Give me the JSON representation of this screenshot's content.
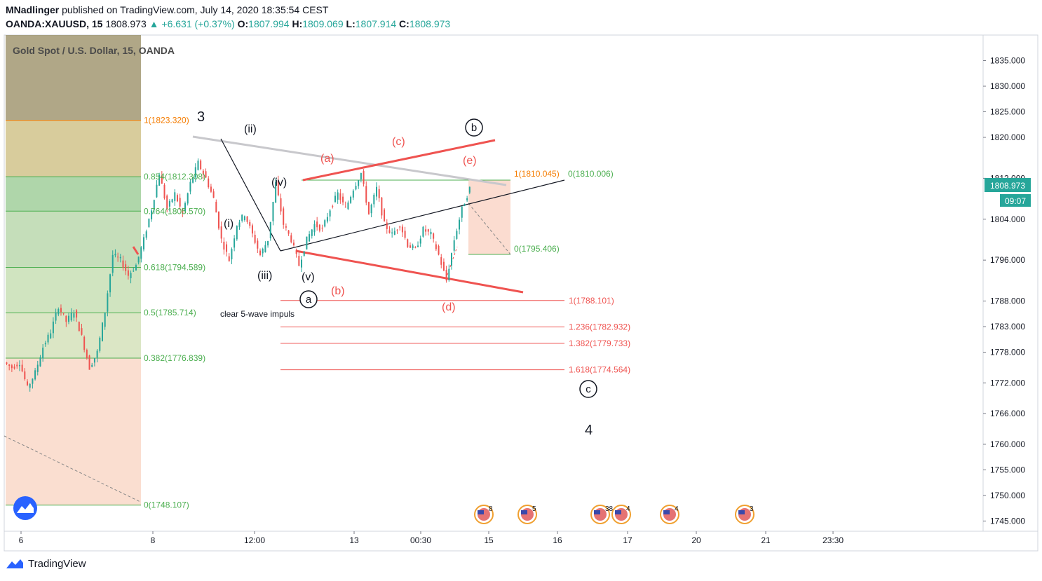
{
  "header": {
    "author": "MNadlinger",
    "published": "published on TradingView.com, July 14, 2020 18:35:54 CEST",
    "symbol": "OANDA:XAUUSD, 15",
    "price": "1808.973",
    "arrow": "▲",
    "change": "+6.631 (+0.37%)",
    "o_label": "O:",
    "o": "1807.994",
    "h_label": "H:",
    "h": "1809.069",
    "l_label": "L:",
    "l": "1807.914",
    "c_label": "C:",
    "c": "1808.973"
  },
  "footer": {
    "brand": "TradingView"
  },
  "colors": {
    "green": "#4caf50",
    "red": "#ef5350",
    "orange": "#f57c00",
    "fib_green": "rgba(76,175,80,0.35)",
    "fib_salmon": "rgba(242,140,100,0.30)"
  },
  "chart_data": {
    "type": "candlestick",
    "title": "Gold Spot / U.S. Dollar, 15, OANDA",
    "ylim": [
      1743,
      1840
    ],
    "y_ticks": [
      "1835.000",
      "1830.000",
      "1825.000",
      "1820.000",
      "1812.000",
      "1804.000",
      "1796.000",
      "1788.000",
      "1783.000",
      "1778.000",
      "1772.000",
      "1766.000",
      "1760.000",
      "1755.000",
      "1750.000",
      "1745.000"
    ],
    "x_ticks": [
      "6",
      "8",
      "12:00",
      "13",
      "00:30",
      "15",
      "16",
      "17",
      "20",
      "21",
      "23:30"
    ],
    "last_price": "1808.973",
    "countdown": "09:07",
    "price_path": [
      [
        1776,
        1775
      ],
      [
        1775,
        1776
      ],
      [
        1776,
        1771
      ],
      [
        1771,
        1774
      ],
      [
        1774,
        1779
      ],
      [
        1779,
        1782
      ],
      [
        1782,
        1787
      ],
      [
        1787,
        1784
      ],
      [
        1784,
        1786
      ],
      [
        1786,
        1781
      ],
      [
        1781,
        1775
      ],
      [
        1775,
        1778
      ],
      [
        1778,
        1786
      ],
      [
        1786,
        1797
      ],
      [
        1797,
        1796
      ],
      [
        1796,
        1793
      ],
      [
        1793,
        1795
      ],
      [
        1795,
        1800
      ],
      [
        1800,
        1806
      ],
      [
        1806,
        1813
      ],
      [
        1813,
        1806
      ],
      [
        1806,
        1809
      ],
      [
        1809,
        1805
      ],
      [
        1805,
        1811
      ],
      [
        1811,
        1815
      ],
      [
        1815,
        1812
      ],
      [
        1812,
        1808
      ],
      [
        1808,
        1800
      ],
      [
        1800,
        1796
      ],
      [
        1796,
        1803
      ],
      [
        1803,
        1805
      ],
      [
        1805,
        1801
      ],
      [
        1801,
        1797
      ],
      [
        1797,
        1800
      ],
      [
        1800,
        1811
      ],
      [
        1811,
        1803
      ],
      [
        1803,
        1800
      ],
      [
        1800,
        1795
      ],
      [
        1795,
        1800
      ],
      [
        1800,
        1803
      ],
      [
        1803,
        1802
      ],
      [
        1802,
        1806
      ],
      [
        1806,
        1809
      ],
      [
        1809,
        1806
      ],
      [
        1806,
        1810
      ],
      [
        1810,
        1813
      ],
      [
        1813,
        1805
      ],
      [
        1805,
        1810
      ],
      [
        1810,
        1803
      ],
      [
        1803,
        1801
      ],
      [
        1801,
        1803
      ],
      [
        1803,
        1799
      ],
      [
        1799,
        1798
      ],
      [
        1798,
        1802
      ],
      [
        1802,
        1801
      ],
      [
        1801,
        1797
      ],
      [
        1797,
        1792
      ],
      [
        1792,
        1800
      ],
      [
        1800,
        1806
      ],
      [
        1806,
        1810
      ]
    ],
    "fib_left": [
      {
        "label": "1(1823.320)",
        "value": 1823.32,
        "color": "#f57c00"
      },
      {
        "label": "0.854(1812.308)",
        "value": 1812.308,
        "color": "#4caf50"
      },
      {
        "label": "0.764(1805.570)",
        "value": 1805.57,
        "color": "#4caf50"
      },
      {
        "label": "0.618(1794.589)",
        "value": 1794.589,
        "color": "#4caf50"
      },
      {
        "label": "0.5(1785.714)",
        "value": 1785.714,
        "color": "#4caf50"
      },
      {
        "label": "0.382(1776.839)",
        "value": 1776.839,
        "color": "#4caf50"
      },
      {
        "label": "0(1748.107)",
        "value": 1748.107,
        "color": "#4caf50"
      }
    ],
    "fib_right": [
      {
        "label": "1(1788.101)",
        "value": 1788.101
      },
      {
        "label": "1.236(1782.932)",
        "value": 1782.932
      },
      {
        "label": "1.382(1779.733)",
        "value": 1779.733
      },
      {
        "label": "1.618(1774.564)",
        "value": 1774.564
      }
    ],
    "fib_small": [
      {
        "label": "1(1810.045)",
        "value": 1810.045,
        "color": "#f57c00"
      },
      {
        "label": "0(1810.006)",
        "value": 1810.006,
        "color": "#4caf50"
      },
      {
        "label": "0(1795.406)",
        "value": 1795.406,
        "color": "#4caf50"
      }
    ],
    "annotations_black": [
      "3",
      "(ii)",
      "(i)",
      "(iv)",
      "(iii)",
      "(v)",
      "4"
    ],
    "annotations_red": [
      "(a)",
      "(b)",
      "(c)",
      "(d)",
      "(e)"
    ],
    "annotations_circled": [
      "a",
      "b",
      "c"
    ],
    "note": "clear 5-wave impuls",
    "event_counts": [
      "8",
      "5",
      "38",
      "4",
      "4",
      "3"
    ]
  }
}
